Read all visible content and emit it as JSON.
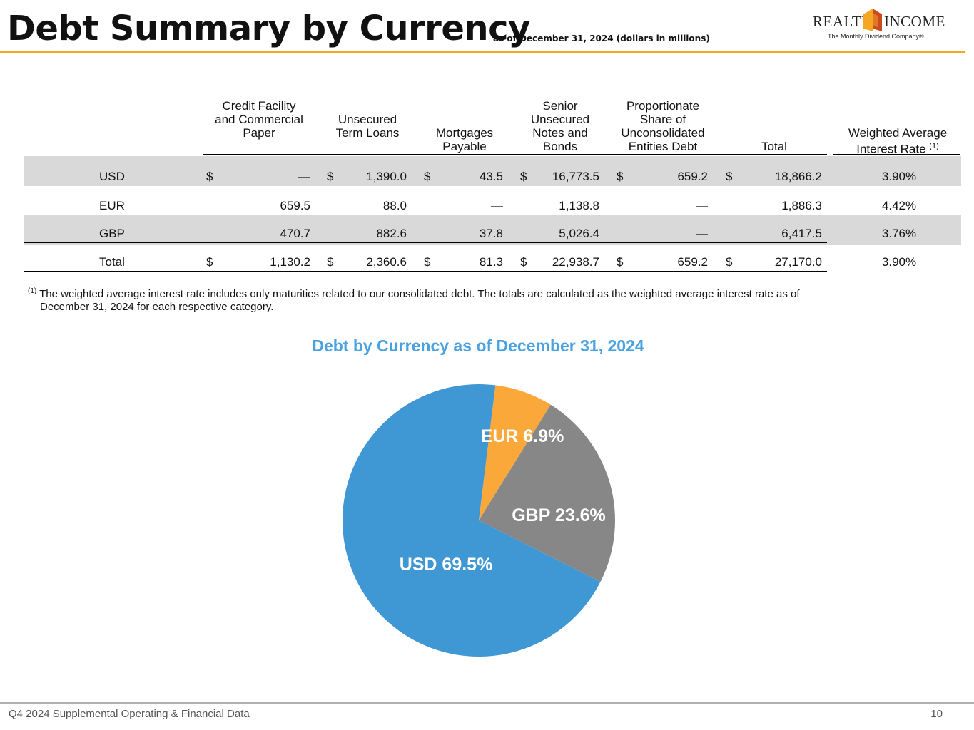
{
  "header": {
    "title": "Debt Summary by Currency",
    "subtitle": "as of December 31, 2024 (dollars in millions)",
    "logo_left": "REALTY",
    "logo_right": "INCOME",
    "logo_tagline": "The Monthly Dividend Company®",
    "accent_color": "#f5a623"
  },
  "table": {
    "columns": [
      "Credit Facility and Commercial Paper",
      "Unsecured Term Loans",
      "Mortgages Payable",
      "Senior Unsecured Notes and Bonds",
      "Proportionate Share of Unconsolidated Entities Debt",
      "Total",
      "Weighted Average Interest Rate"
    ],
    "rate_footnote_marker": "(1)",
    "rows": [
      {
        "label": "USD",
        "credit_facility": "—",
        "term_loans": "1,390.0",
        "mortgages": "43.5",
        "notes_bonds": "16,773.5",
        "unconsolidated": "659.2",
        "total": "18,866.2",
        "rate": "3.90%",
        "dollar_signs": true
      },
      {
        "label": "EUR",
        "credit_facility": "659.5",
        "term_loans": "88.0",
        "mortgages": "—",
        "notes_bonds": "1,138.8",
        "unconsolidated": "—",
        "total": "1,886.3",
        "rate": "4.42%",
        "dollar_signs": false
      },
      {
        "label": "GBP",
        "credit_facility": "470.7",
        "term_loans": "882.6",
        "mortgages": "37.8",
        "notes_bonds": "5,026.4",
        "unconsolidated": "—",
        "total": "6,417.5",
        "rate": "3.76%",
        "dollar_signs": false
      },
      {
        "label": "Total",
        "credit_facility": "1,130.2",
        "term_loans": "2,360.6",
        "mortgages": "81.3",
        "notes_bonds": "22,938.7",
        "unconsolidated": "659.2",
        "total": "27,170.0",
        "rate": "3.90%",
        "dollar_signs": true
      }
    ],
    "currency_symbol": "$"
  },
  "footnote": {
    "marker": "(1)",
    "line1": "The weighted average interest rate includes only maturities related to our consolidated debt. The totals are calculated as the weighted average interest rate as of",
    "line2": "December 31, 2024 for each respective category."
  },
  "chart_data": {
    "type": "pie",
    "title": "Debt by Currency as of December 31, 2024",
    "slices": [
      {
        "label": "USD 69.5%",
        "name": "USD",
        "value": 69.5,
        "color": "#3f97d3"
      },
      {
        "label": "EUR 6.9%",
        "name": "EUR",
        "value": 6.9,
        "color": "#fba83b"
      },
      {
        "label": "GBP 23.6%",
        "name": "GBP",
        "value": 23.6,
        "color": "#878787"
      }
    ],
    "legend": "none"
  },
  "footer": {
    "left": "Q4 2024 Supplemental Operating & Financial Data",
    "page": "10"
  }
}
